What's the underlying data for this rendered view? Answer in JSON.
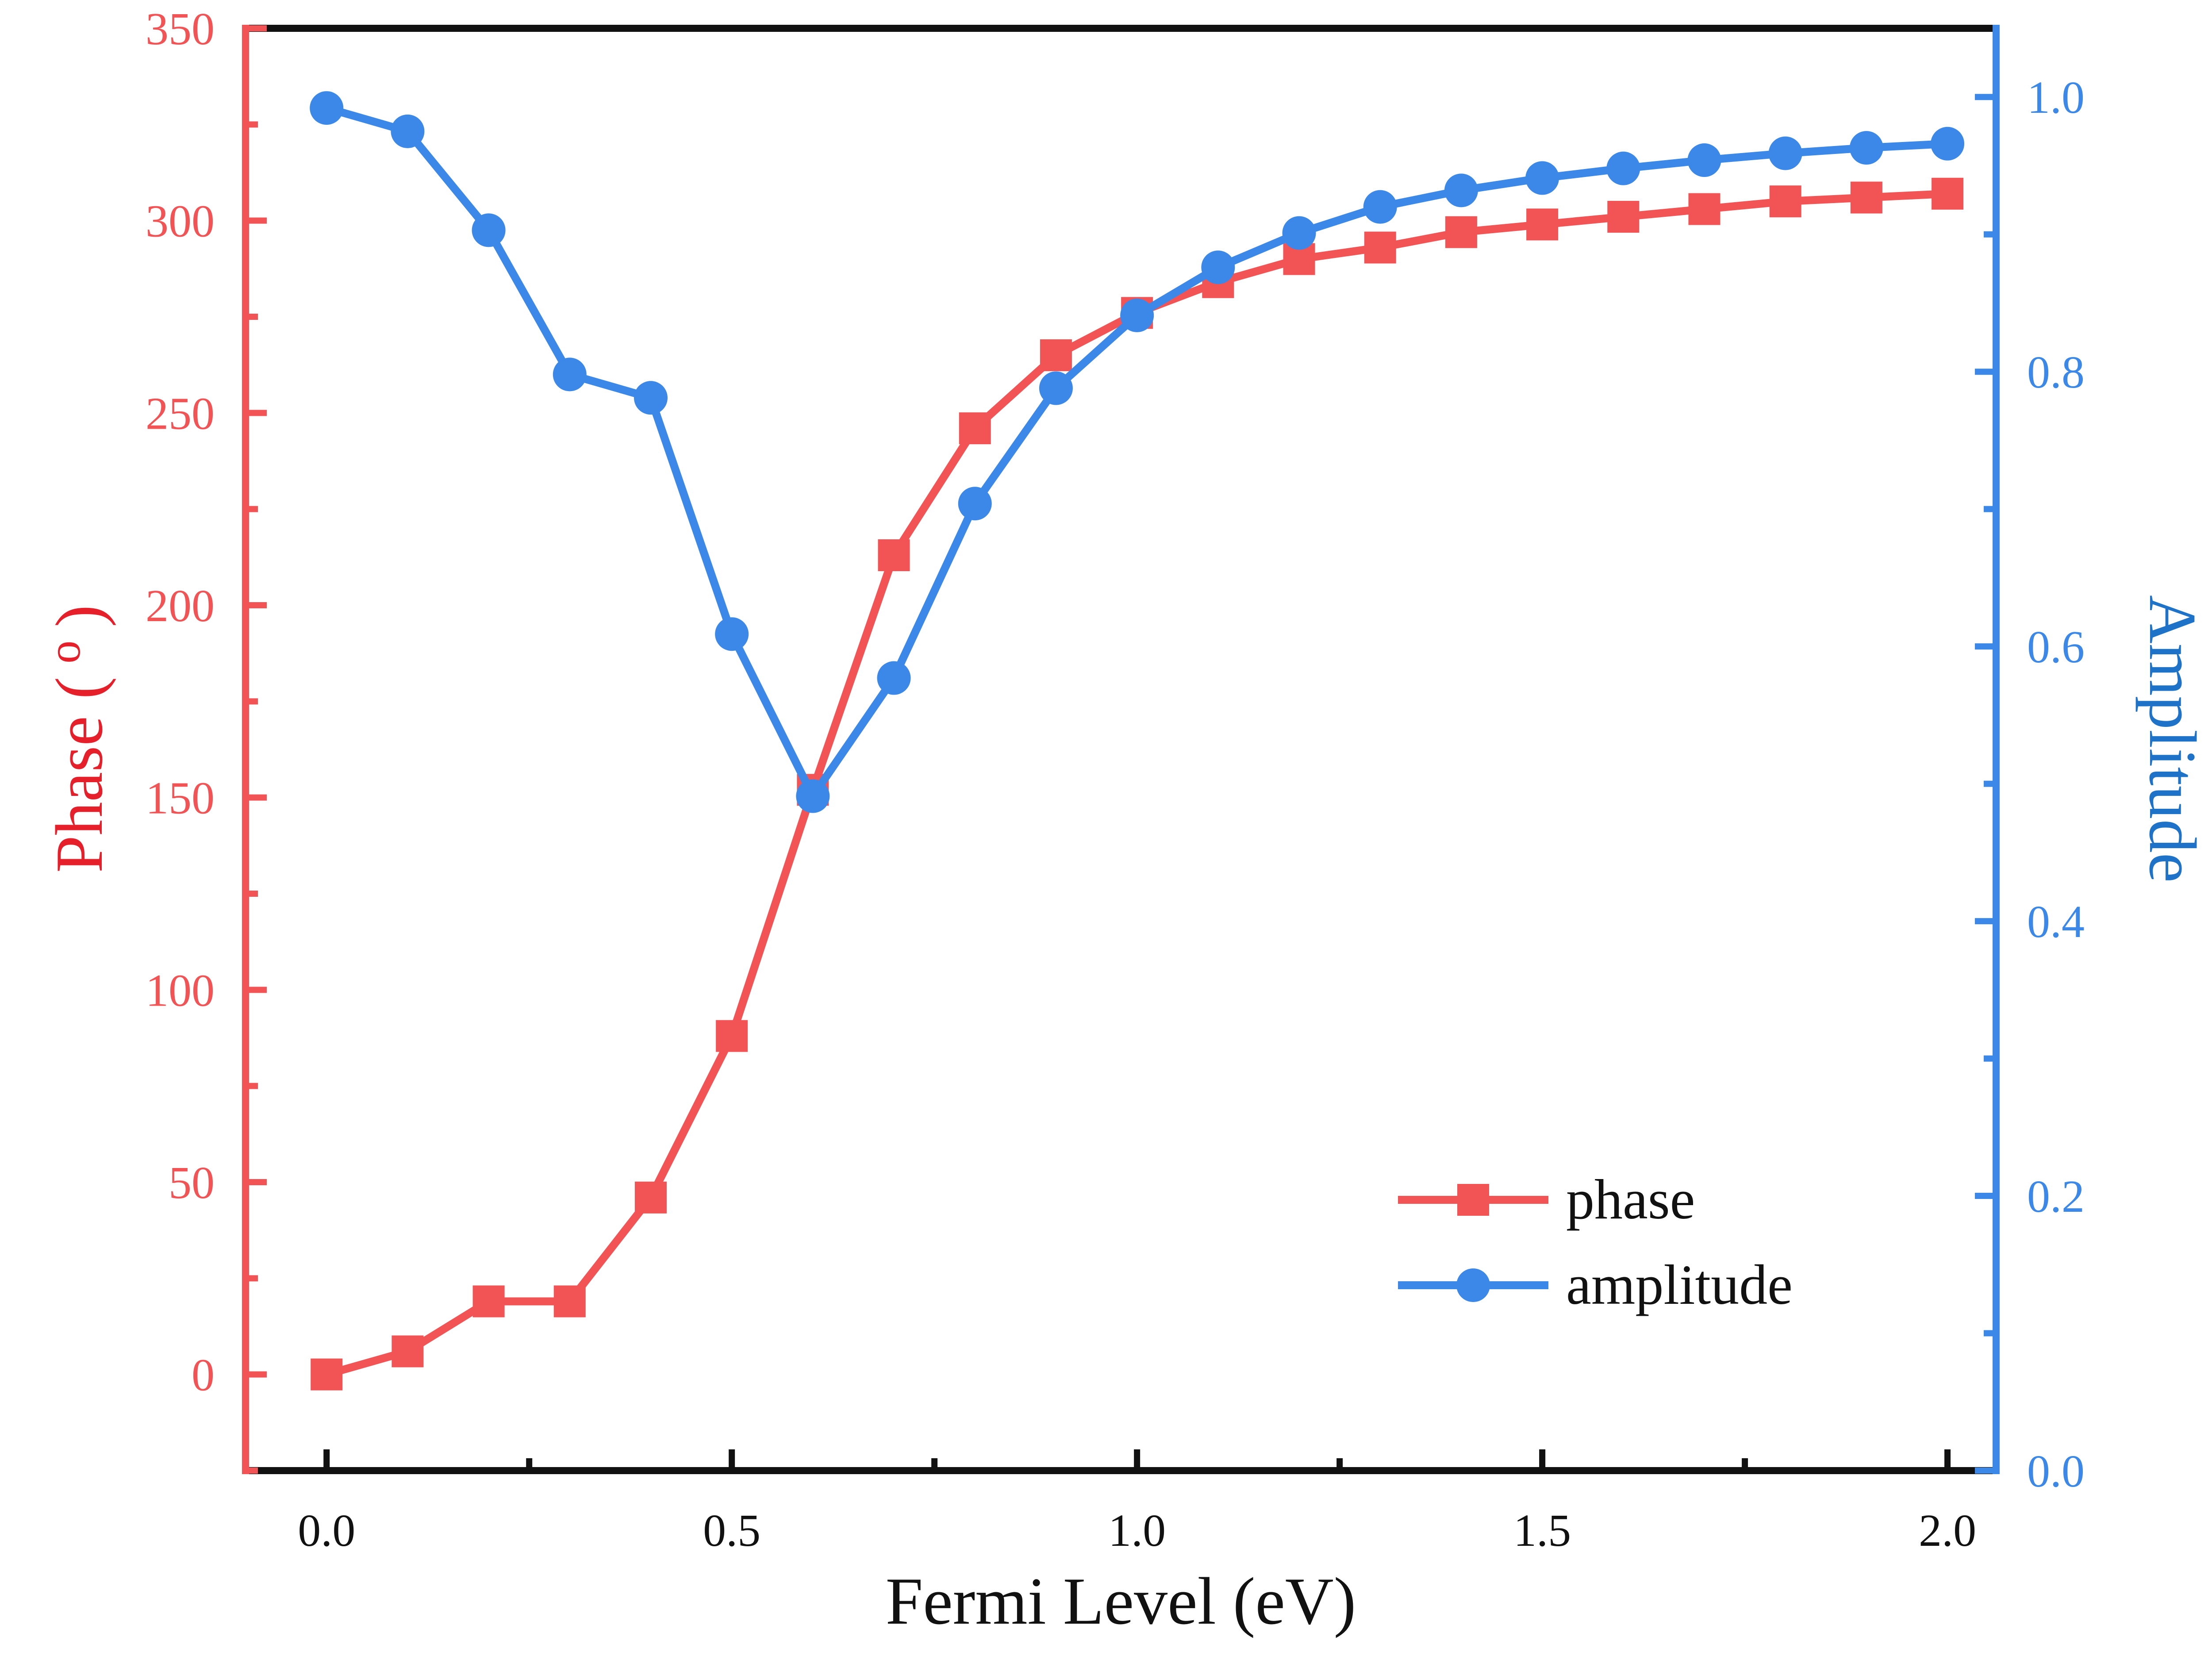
{
  "colors": {
    "phase": "#f25456",
    "amplitude": "#3b88e8",
    "left_axis": "#f25456",
    "left_title": "#e6202a",
    "right_axis": "#3b88e8",
    "right_title": "#1e72c8",
    "frame": "#111111"
  },
  "chart_data": {
    "type": "line",
    "xlabel": "Fermi Level (eV)",
    "ylabel_left": "Phase (°)",
    "ylabel_left_text": "Phase",
    "ylabel_left_unit_open": "(",
    "ylabel_left_unit": "o",
    "ylabel_left_unit_close": ")",
    "ylabel_right": "Amplitude",
    "xlim": [
      -0.1,
      2.06
    ],
    "ylim_left": [
      -25,
      350
    ],
    "ylim_right": [
      0.0,
      1.05
    ],
    "x_ticks": [
      "0.0",
      "0.5",
      "1.0",
      "1.5",
      "2.0"
    ],
    "y_left_ticks": [
      "0",
      "50",
      "100",
      "150",
      "200",
      "250",
      "300",
      "350"
    ],
    "y_right_ticks": [
      "0.0",
      "0.2",
      "0.4",
      "0.6",
      "0.8",
      "1.0"
    ],
    "x": [
      0.0,
      0.1,
      0.2,
      0.3,
      0.4,
      0.5,
      0.6,
      0.7,
      0.8,
      0.9,
      1.0,
      1.1,
      1.2,
      1.3,
      1.4,
      1.5,
      1.6,
      1.7,
      1.8,
      1.9,
      2.0
    ],
    "series": [
      {
        "name": "phase",
        "axis": "left",
        "marker": "square",
        "values": [
          0,
          6,
          19,
          19,
          46,
          88,
          152,
          213,
          246,
          265,
          276,
          284,
          290,
          293,
          297,
          299,
          301,
          303,
          305,
          306,
          307
        ]
      },
      {
        "name": "amplitude",
        "axis": "right",
        "marker": "circle",
        "values": [
          0.992,
          0.975,
          0.903,
          0.798,
          0.781,
          0.609,
          0.491,
          0.577,
          0.704,
          0.788,
          0.841,
          0.876,
          0.901,
          0.92,
          0.932,
          0.941,
          0.948,
          0.954,
          0.959,
          0.963,
          0.966
        ]
      }
    ],
    "legend": {
      "position": "lower-right",
      "entries": [
        "phase",
        "amplitude"
      ]
    },
    "grid": false
  }
}
